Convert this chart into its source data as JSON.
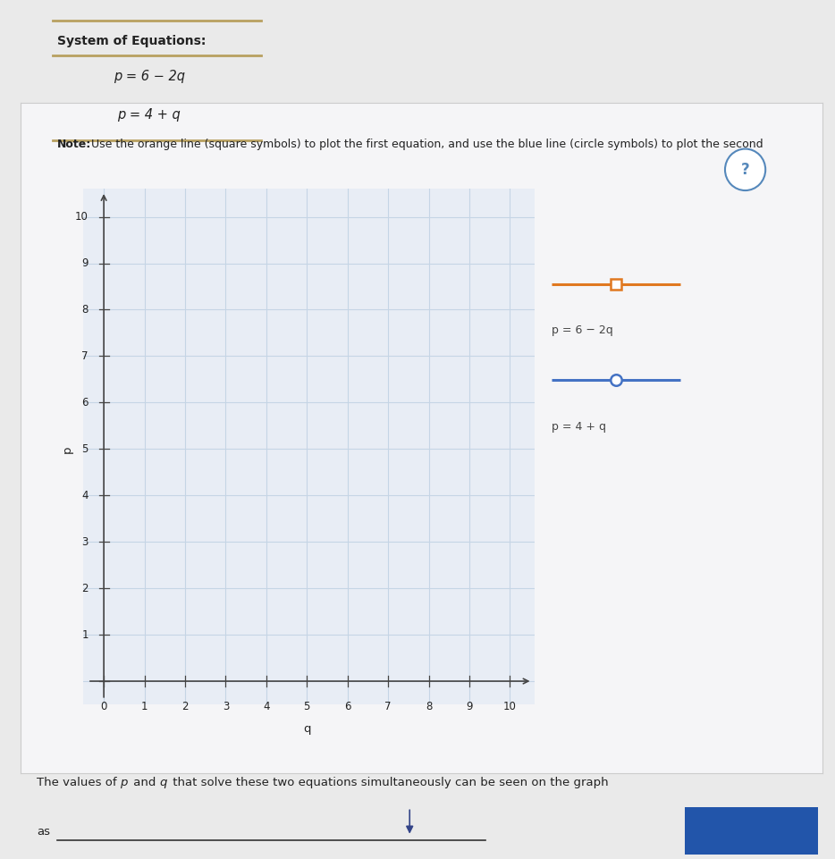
{
  "title_text": "System of Equations:",
  "eq1": "p = 6 − 2q",
  "eq2": "p = 4 + q",
  "note_bold": "Note:",
  "note_rest": " Use the orange line (square symbols) to plot the first equation, and use the blue line (circle symbols) to plot the second",
  "xlabel": "q",
  "ylabel": "p",
  "xmin": 0,
  "xmax": 10,
  "ymin": 0,
  "ymax": 10,
  "orange_color": "#E07820",
  "blue_color": "#4472C4",
  "grid_color": "#C5D5E5",
  "axis_color": "#444444",
  "bg_color": "#EAEAEA",
  "panel_bg": "#F5F5F7",
  "plot_bg_color": "#E8EDF5",
  "legend_eq1": "p = 6 − 2q",
  "legend_eq2": "p = 4 + q",
  "footer_text": "The values of ",
  "footer_p": "p",
  "footer_mid": " and ",
  "footer_q": "q",
  "footer_end": " that solve these two equations simultaneously can be seen on the graph",
  "footer_as": "as",
  "divider_color": "#B8A060",
  "question_color": "#5588BB"
}
